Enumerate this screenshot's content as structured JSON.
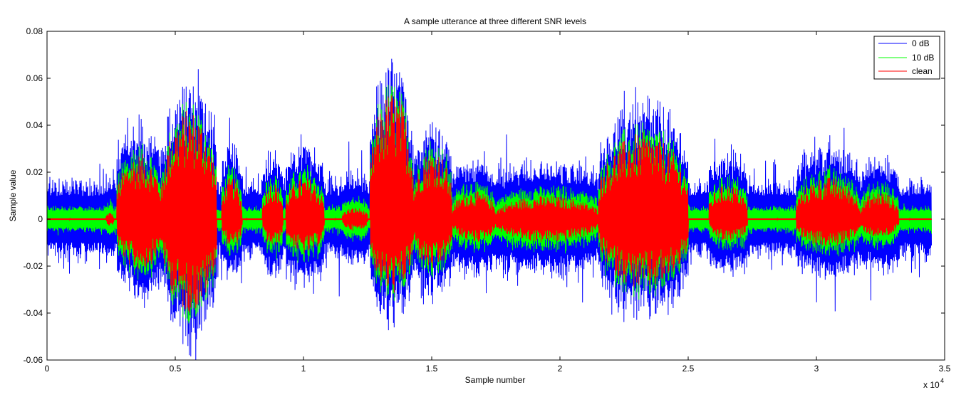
{
  "chart_data": {
    "type": "line",
    "title": "A sample utterance at three different SNR levels",
    "xlabel": "Sample number",
    "ylabel": "Sample value",
    "x_exponent_label": "x 10",
    "x_exponent_power": "4",
    "xlim": [
      0,
      35000
    ],
    "ylim": [
      -0.06,
      0.08
    ],
    "x_ticks": [
      0,
      5000,
      10000,
      15000,
      20000,
      25000,
      30000,
      35000
    ],
    "x_tick_labels": [
      "0",
      "0.5",
      "1",
      "1.5",
      "2",
      "2.5",
      "3",
      "3.5"
    ],
    "y_ticks": [
      -0.06,
      -0.04,
      -0.02,
      0,
      0.02,
      0.04,
      0.06,
      0.08
    ],
    "y_tick_labels": [
      "-0.06",
      "-0.04",
      "-0.02",
      "0",
      "0.02",
      "0.04",
      "0.06",
      "0.08"
    ],
    "grid": false,
    "legend_position": "top-right",
    "n_samples": 34500,
    "series": [
      {
        "name": "0 dB",
        "color": "#0000ff",
        "noise_amplitude": 0.012
      },
      {
        "name": "10 dB",
        "color": "#00ff00",
        "noise_amplitude": 0.004
      },
      {
        "name": "clean",
        "color": "#ff0000",
        "noise_amplitude": 0.0
      }
    ],
    "speech_segments": [
      {
        "start": 2300,
        "end": 2600,
        "pos": 0.003,
        "neg": -0.003
      },
      {
        "start": 2700,
        "end": 4500,
        "pos": 0.028,
        "neg": -0.022
      },
      {
        "start": 4500,
        "end": 6600,
        "pos": 0.047,
        "neg": -0.04
      },
      {
        "start": 6800,
        "end": 7600,
        "pos": 0.018,
        "neg": -0.012
      },
      {
        "start": 8400,
        "end": 9200,
        "pos": 0.016,
        "neg": -0.012
      },
      {
        "start": 9300,
        "end": 10800,
        "pos": 0.018,
        "neg": -0.015
      },
      {
        "start": 11500,
        "end": 12500,
        "pos": 0.005,
        "neg": -0.005
      },
      {
        "start": 12600,
        "end": 14300,
        "pos": 0.055,
        "neg": -0.032
      },
      {
        "start": 14300,
        "end": 15800,
        "pos": 0.03,
        "neg": -0.022
      },
      {
        "start": 15800,
        "end": 17500,
        "pos": 0.012,
        "neg": -0.01
      },
      {
        "start": 17500,
        "end": 21500,
        "pos": 0.01,
        "neg": -0.01
      },
      {
        "start": 21500,
        "end": 25000,
        "pos": 0.037,
        "neg": -0.03
      },
      {
        "start": 25800,
        "end": 27300,
        "pos": 0.015,
        "neg": -0.01
      },
      {
        "start": 29200,
        "end": 31700,
        "pos": 0.018,
        "neg": -0.012
      },
      {
        "start": 31700,
        "end": 33200,
        "pos": 0.012,
        "neg": -0.008
      }
    ]
  }
}
